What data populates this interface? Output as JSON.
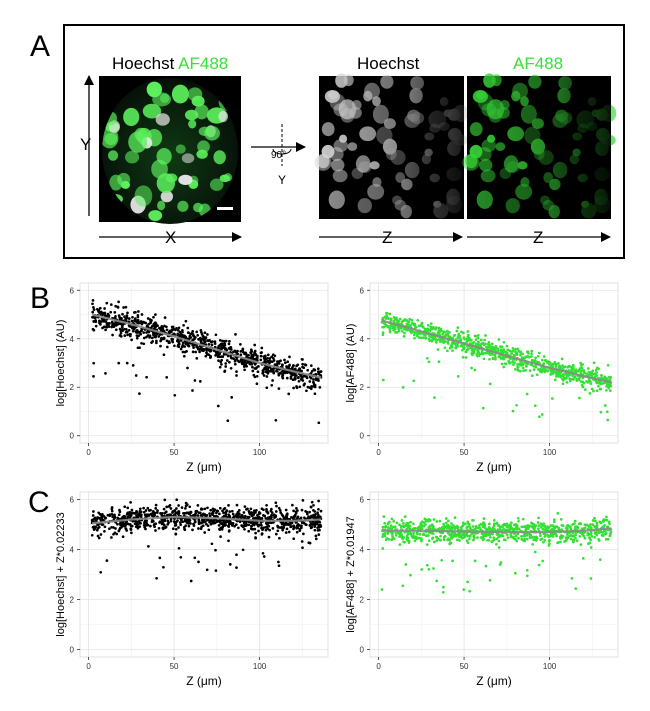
{
  "panel_a": {
    "letter": "A",
    "left_label_hoechst": "Hoechst",
    "left_label_af488": "AF488",
    "mid_label_hoechst": "Hoechst",
    "right_label_af488": "AF488",
    "axis_y": "Y",
    "axis_x": "X",
    "axis_z1": "Z",
    "axis_z2": "Z",
    "rotation_angle": "90°",
    "rotation_axis": "Y",
    "green_color": "#3ae03a"
  },
  "panel_b": {
    "letter": "B"
  },
  "panel_c": {
    "letter": "C"
  },
  "chart_data": [
    {
      "id": "b_left",
      "type": "scatter",
      "xlabel": "Z (μm)",
      "ylabel": "log[Hoechst] (AU)",
      "xlim": [
        -5,
        140
      ],
      "ylim": [
        -0.3,
        6.3
      ],
      "xticks": [
        0,
        50,
        100
      ],
      "yticks": [
        0,
        2,
        4,
        6
      ],
      "point_color": "#000000",
      "n_points": 1000,
      "z_range": [
        2,
        136
      ],
      "trend": [
        [
          2,
          5.0
        ],
        [
          25,
          4.6
        ],
        [
          50,
          4.1
        ],
        [
          75,
          3.55
        ],
        [
          100,
          3.0
        ],
        [
          120,
          2.65
        ],
        [
          136,
          2.4
        ]
      ],
      "spread": 0.48,
      "grid": true
    },
    {
      "id": "b_right",
      "type": "scatter",
      "xlabel": "Z (μm)",
      "ylabel": "log[AF488] (AU)",
      "xlim": [
        -5,
        140
      ],
      "ylim": [
        -0.3,
        6.3
      ],
      "xticks": [
        0,
        50,
        100
      ],
      "yticks": [
        0,
        2,
        4,
        6
      ],
      "point_color": "#33e033",
      "n_points": 900,
      "z_range": [
        2,
        136
      ],
      "trend": [
        [
          2,
          4.75
        ],
        [
          25,
          4.3
        ],
        [
          50,
          3.8
        ],
        [
          75,
          3.3
        ],
        [
          100,
          2.8
        ],
        [
          120,
          2.45
        ],
        [
          136,
          2.2
        ]
      ],
      "spread": 0.4,
      "grid": true
    },
    {
      "id": "c_left",
      "type": "scatter",
      "xlabel": "Z (μm)",
      "ylabel": "log[Hoechst] + Z*0.02233",
      "xlim": [
        -5,
        140
      ],
      "ylim": [
        -0.3,
        6.3
      ],
      "xticks": [
        0,
        50,
        100
      ],
      "yticks": [
        0,
        2,
        4,
        6
      ],
      "point_color": "#000000",
      "n_points": 1000,
      "z_range": [
        2,
        136
      ],
      "trend": [
        [
          2,
          5.05
        ],
        [
          25,
          5.2
        ],
        [
          50,
          5.3
        ],
        [
          75,
          5.25
        ],
        [
          100,
          5.15
        ],
        [
          120,
          5.15
        ],
        [
          136,
          5.2
        ]
      ],
      "spread": 0.45,
      "grid": true
    },
    {
      "id": "c_right",
      "type": "scatter",
      "xlabel": "Z (μm)",
      "ylabel": "log[AF488] + Z*0.01947",
      "xlim": [
        -5,
        140
      ],
      "ylim": [
        -0.3,
        6.3
      ],
      "xticks": [
        0,
        50,
        100
      ],
      "yticks": [
        0,
        2,
        4,
        6
      ],
      "point_color": "#33e033",
      "n_points": 900,
      "z_range": [
        2,
        136
      ],
      "trend": [
        [
          2,
          4.75
        ],
        [
          25,
          4.75
        ],
        [
          50,
          4.72
        ],
        [
          75,
          4.7
        ],
        [
          100,
          4.7
        ],
        [
          120,
          4.75
        ],
        [
          136,
          4.85
        ]
      ],
      "spread": 0.4,
      "grid": true
    }
  ]
}
